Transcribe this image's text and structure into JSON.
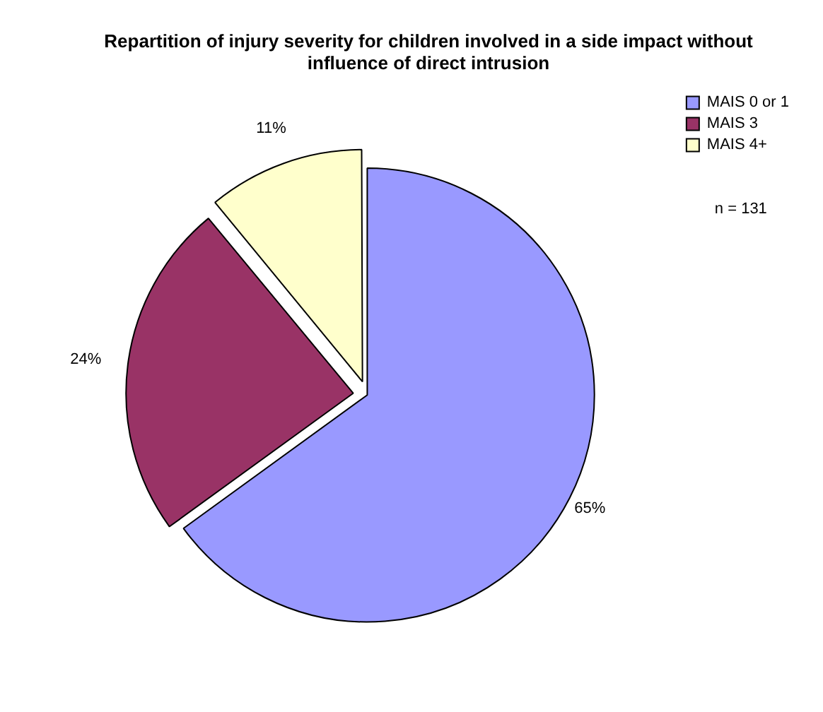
{
  "chart_data": {
    "type": "pie",
    "title": "Repartition of injury severity for children involved in a side impact without influence of direct intrusion",
    "categories": [
      "MAIS 0 or 1",
      "MAIS 3",
      "MAIS 4+"
    ],
    "values": [
      65,
      24,
      11
    ],
    "value_labels": [
      "65%",
      "24%",
      "11%"
    ],
    "colors": [
      "#9999ff",
      "#993366",
      "#ffffcc"
    ],
    "legend": "top right",
    "annotations": [
      "n = 131"
    ]
  }
}
